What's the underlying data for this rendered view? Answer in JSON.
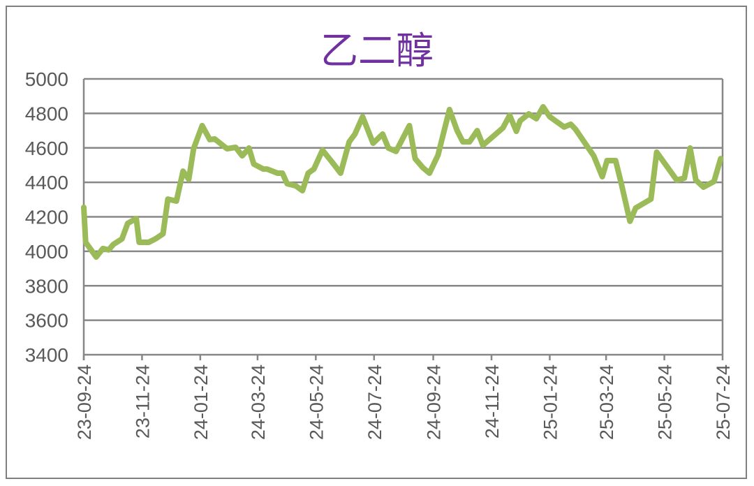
{
  "chart_data": {
    "type": "line",
    "title": "乙二醇",
    "xlabel": "",
    "ylabel": "",
    "ylim": [
      3400,
      5000
    ],
    "yticks": [
      3400,
      3600,
      3800,
      4000,
      4200,
      4400,
      4600,
      4800,
      5000
    ],
    "xlim": [
      "2023-09-24",
      "2025-07-24"
    ],
    "xtick_labels": [
      "23-09-24",
      "23-11-24",
      "24-01-24",
      "24-03-24",
      "24-05-24",
      "24-07-24",
      "24-09-24",
      "24-11-24",
      "25-01-24",
      "25-03-24",
      "25-05-24",
      "25-07-24"
    ],
    "xtick_dates": [
      "2023-09-24",
      "2023-11-24",
      "2024-01-24",
      "2024-03-24",
      "2024-05-24",
      "2024-07-24",
      "2024-09-24",
      "2024-11-24",
      "2025-01-24",
      "2025-03-24",
      "2025-05-24",
      "2025-07-24"
    ],
    "grid": true,
    "legend": "none",
    "line_color": "#9BBB59",
    "series": [
      {
        "x": [
          "2023-09-24",
          "2023-09-26",
          "2023-10-07",
          "2023-10-14",
          "2023-10-20",
          "2023-10-25",
          "2023-11-03",
          "2023-11-09",
          "2023-11-18",
          "2023-11-21",
          "2023-12-01",
          "2023-12-08",
          "2023-12-16",
          "2023-12-21",
          "2023-12-30",
          "2024-01-06",
          "2024-01-12",
          "2024-01-17",
          "2024-01-26",
          "2024-02-03",
          "2024-02-08",
          "2024-02-21",
          "2024-03-01",
          "2024-03-08",
          "2024-03-15",
          "2024-03-20",
          "2024-03-30",
          "2024-04-03",
          "2024-04-14",
          "2024-04-19",
          "2024-04-24",
          "2024-05-03",
          "2024-05-10",
          "2024-05-16",
          "2024-05-22",
          "2024-05-31",
          "2024-06-10",
          "2024-06-19",
          "2024-06-28",
          "2024-07-04",
          "2024-07-12",
          "2024-07-23",
          "2024-08-02",
          "2024-08-08",
          "2024-08-16",
          "2024-08-30",
          "2024-09-05",
          "2024-09-13",
          "2024-09-20",
          "2024-09-29",
          "2024-10-11",
          "2024-10-19",
          "2024-10-25",
          "2024-11-01",
          "2024-11-09",
          "2024-11-15",
          "2024-11-26",
          "2024-12-06",
          "2024-12-13",
          "2024-12-20",
          "2024-12-24",
          "2025-01-02",
          "2025-01-10",
          "2025-01-17",
          "2025-01-24",
          "2025-02-08",
          "2025-02-15",
          "2025-02-20",
          "2025-03-03",
          "2025-03-11",
          "2025-03-20",
          "2025-03-25",
          "2025-04-03",
          "2025-04-09",
          "2025-04-18",
          "2025-04-24",
          "2025-05-10",
          "2025-05-16",
          "2025-06-06",
          "2025-06-14",
          "2025-06-20",
          "2025-06-26",
          "2025-07-04",
          "2025-07-15",
          "2025-07-22"
        ],
        "values": [
          4255,
          4052,
          3967,
          4016,
          4008,
          4040,
          4072,
          4162,
          4190,
          4052,
          4052,
          4072,
          4101,
          4303,
          4291,
          4465,
          4417,
          4595,
          4729,
          4648,
          4652,
          4595,
          4603,
          4554,
          4599,
          4506,
          4477,
          4477,
          4453,
          4453,
          4392,
          4380,
          4352,
          4453,
          4477,
          4587,
          4518,
          4453,
          4635,
          4680,
          4781,
          4627,
          4680,
          4599,
          4579,
          4729,
          4538,
          4486,
          4453,
          4558,
          4822,
          4700,
          4635,
          4635,
          4700,
          4615,
          4668,
          4716,
          4789,
          4696,
          4757,
          4797,
          4769,
          4838,
          4781,
          4721,
          4737,
          4708,
          4619,
          4554,
          4433,
          4526,
          4526,
          4392,
          4174,
          4251,
          4303,
          4575,
          4413,
          4425,
          4599,
          4413,
          4372,
          4405,
          4538
        ]
      }
    ]
  }
}
